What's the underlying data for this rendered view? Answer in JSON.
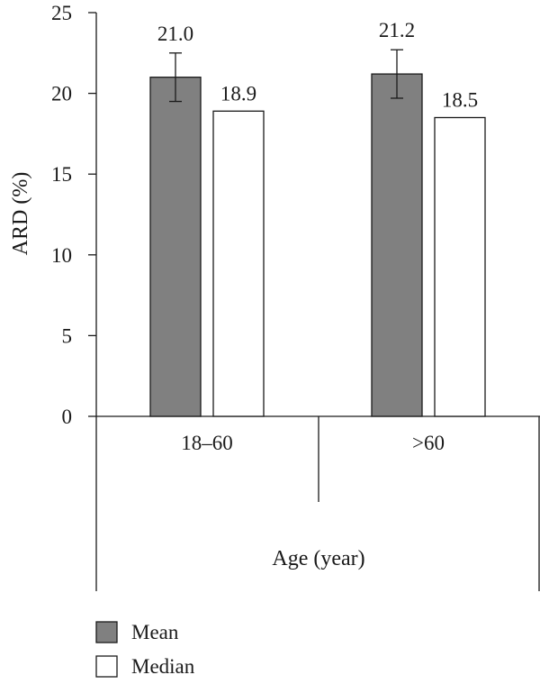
{
  "chart_data": {
    "type": "bar",
    "categories": [
      "18–60",
      ">60"
    ],
    "series": [
      {
        "name": "Mean",
        "color": "#808080",
        "values": [
          21.0,
          21.2
        ],
        "labels": [
          "21.0",
          "21.2"
        ],
        "error": [
          1.5,
          1.5
        ]
      },
      {
        "name": "Median",
        "color": "#ffffff",
        "values": [
          18.9,
          18.5
        ],
        "labels": [
          "18.9",
          "18.5"
        ]
      }
    ],
    "ylim": [
      0,
      25
    ],
    "yticks": [
      "0",
      "5",
      "10",
      "15",
      "20",
      "25"
    ],
    "ylabel": "ARD (%)",
    "xlabel": "Age (year)",
    "legend_position": "bottom-left",
    "grid": false
  }
}
